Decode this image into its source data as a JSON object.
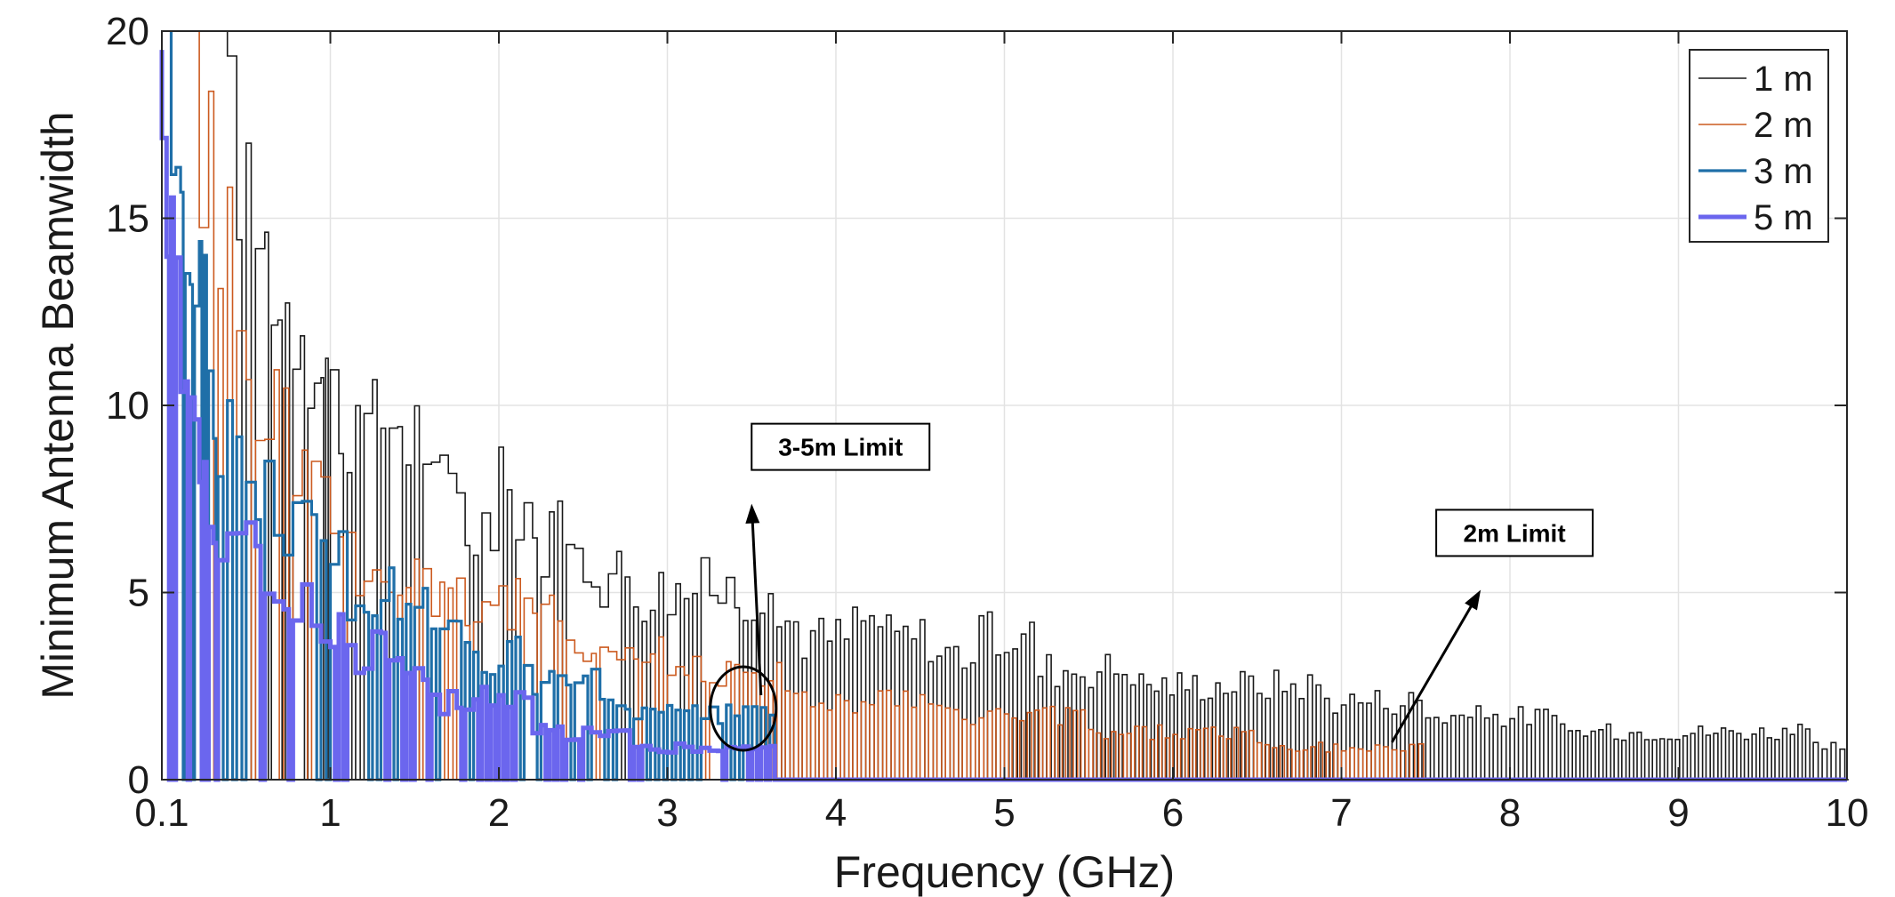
{
  "chart_data": {
    "type": "line",
    "title": "",
    "xlabel": "Frequency (GHz)",
    "ylabel": "Minimum Antenna Beamwidth",
    "xlim": [
      0.1,
      10
    ],
    "ylim": [
      0,
      20
    ],
    "x_ticks": [
      0.1,
      1,
      2,
      3,
      4,
      5,
      6,
      7,
      8,
      9,
      10
    ],
    "x_tick_labels": [
      "0.1",
      "1",
      "2",
      "3",
      "4",
      "5",
      "6",
      "7",
      "8",
      "9",
      "10"
    ],
    "y_ticks": [
      0,
      5,
      10,
      15,
      20
    ],
    "y_tick_labels": [
      "0",
      "5",
      "10",
      "15",
      "20"
    ],
    "grid": true,
    "legend_position": "top-right",
    "series": [
      {
        "name": "1 m",
        "color": "#1a1a1a",
        "width": "thin",
        "style": "step-spiky",
        "points": [
          [
            0.45,
            20
          ],
          [
            0.55,
            17.5
          ],
          [
            0.65,
            16.5
          ],
          [
            0.72,
            15
          ],
          [
            0.8,
            15
          ],
          [
            0.88,
            14
          ],
          [
            0.95,
            13
          ],
          [
            1.0,
            12
          ],
          [
            1.1,
            10
          ],
          [
            1.2,
            11
          ],
          [
            1.3,
            11.5
          ],
          [
            1.45,
            11
          ],
          [
            1.6,
            9
          ],
          [
            1.8,
            8
          ],
          [
            2.0,
            9
          ],
          [
            2.2,
            7.5
          ],
          [
            2.4,
            7
          ],
          [
            2.6,
            6.5
          ],
          [
            2.8,
            6
          ],
          [
            3.0,
            6
          ],
          [
            3.2,
            6
          ],
          [
            3.45,
            6
          ],
          [
            3.6,
            5
          ],
          [
            3.8,
            4.5
          ],
          [
            4.1,
            5
          ],
          [
            4.3,
            4.5
          ],
          [
            4.6,
            4
          ],
          [
            4.85,
            4.5
          ],
          [
            5.2,
            3.5
          ],
          [
            5.5,
            3.5
          ],
          [
            5.8,
            3
          ],
          [
            6.3,
            3
          ],
          [
            6.6,
            3
          ],
          [
            6.9,
            2.5
          ],
          [
            7.2,
            2.5
          ],
          [
            7.5,
            2
          ],
          [
            7.9,
            2
          ],
          [
            8.3,
            1.5
          ],
          [
            8.8,
            1.5
          ],
          [
            9.3,
            1.5
          ],
          [
            9.8,
            1
          ]
        ]
      },
      {
        "name": "2 m",
        "color": "#cc5a1f",
        "width": "thin",
        "style": "step-spiky",
        "points": [
          [
            0.3,
            20
          ],
          [
            0.4,
            17
          ],
          [
            0.5,
            14
          ],
          [
            0.6,
            12
          ],
          [
            0.7,
            11.5
          ],
          [
            0.8,
            10.5
          ],
          [
            0.9,
            9.5
          ],
          [
            1.0,
            8
          ],
          [
            1.1,
            7
          ],
          [
            1.3,
            6
          ],
          [
            1.5,
            7
          ],
          [
            1.6,
            6
          ],
          [
            1.8,
            5.5
          ],
          [
            2.0,
            5.5
          ],
          [
            2.2,
            5
          ],
          [
            2.4,
            4.5
          ],
          [
            2.6,
            4
          ],
          [
            2.8,
            4
          ],
          [
            3.0,
            3.5
          ],
          [
            3.2,
            3.5
          ],
          [
            3.45,
            3.5
          ],
          [
            3.7,
            2.5
          ],
          [
            4.0,
            2.5
          ],
          [
            4.3,
            2.5
          ],
          [
            4.6,
            2
          ],
          [
            5.0,
            2
          ],
          [
            5.5,
            1.5
          ],
          [
            6.0,
            1.5
          ],
          [
            6.5,
            1
          ],
          [
            7.0,
            1
          ],
          [
            7.3,
            1
          ]
        ]
      },
      {
        "name": "3 m",
        "color": "#1f6fa8",
        "width": "medium",
        "style": "step-spiky",
        "points": [
          [
            0.15,
            20
          ],
          [
            0.2,
            18
          ],
          [
            0.25,
            16
          ],
          [
            0.3,
            14.5
          ],
          [
            0.35,
            12.5
          ],
          [
            0.4,
            11
          ],
          [
            0.5,
            9.5
          ],
          [
            0.6,
            9.5
          ],
          [
            0.7,
            8.5
          ],
          [
            0.8,
            8
          ],
          [
            0.9,
            7.5
          ],
          [
            1.0,
            7
          ],
          [
            1.1,
            5.5
          ],
          [
            1.3,
            6
          ],
          [
            1.5,
            5.5
          ],
          [
            1.6,
            4.5
          ],
          [
            1.8,
            4
          ],
          [
            2.0,
            4
          ],
          [
            2.2,
            3
          ],
          [
            2.4,
            3
          ],
          [
            2.6,
            2.5
          ],
          [
            2.8,
            2
          ],
          [
            3.0,
            2
          ],
          [
            3.2,
            2
          ],
          [
            3.45,
            2
          ]
        ]
      },
      {
        "name": "5 m",
        "color": "#6b66ee",
        "width": "thick",
        "style": "step-spiky",
        "points": [
          [
            0.1,
            19.5
          ],
          [
            0.15,
            16
          ],
          [
            0.2,
            13
          ],
          [
            0.25,
            11
          ],
          [
            0.3,
            10
          ],
          [
            0.35,
            9
          ],
          [
            0.4,
            8
          ],
          [
            0.5,
            7
          ],
          [
            0.6,
            7
          ],
          [
            0.7,
            6
          ],
          [
            0.8,
            6
          ],
          [
            0.9,
            5
          ],
          [
            1.0,
            5
          ],
          [
            1.1,
            4
          ],
          [
            1.3,
            4
          ],
          [
            1.5,
            3.5
          ],
          [
            1.6,
            2.5
          ],
          [
            1.8,
            2.5
          ],
          [
            2.0,
            2.5
          ],
          [
            2.2,
            1.5
          ],
          [
            2.4,
            1.5
          ],
          [
            2.6,
            1.5
          ],
          [
            2.8,
            1
          ],
          [
            3.0,
            1
          ],
          [
            3.2,
            1
          ],
          [
            3.45,
            1
          ]
        ]
      }
    ],
    "annotations": [
      {
        "text": "3-5m Limit",
        "box_at": [
          3.5,
          7.8
        ],
        "arrow_to": [
          3.45,
          1.9
        ]
      },
      {
        "text": "2m Limit",
        "box_at": [
          7.8,
          5.5
        ],
        "arrow_to": [
          7.3,
          1
        ]
      }
    ]
  }
}
